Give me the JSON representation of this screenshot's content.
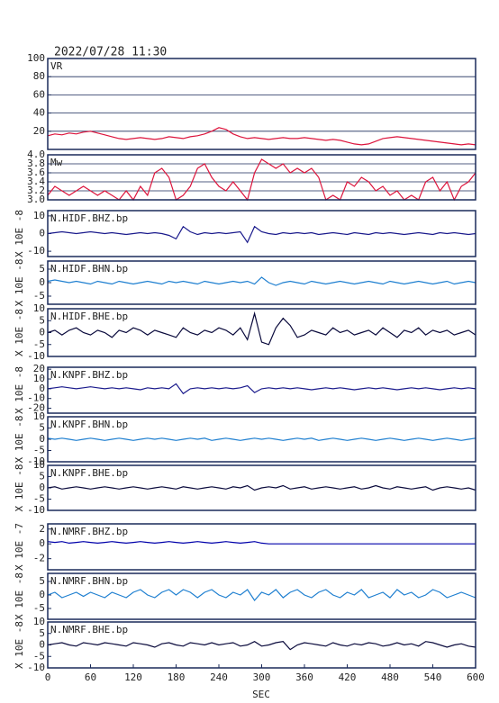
{
  "chart_data": {
    "type": "line",
    "title": "2022/07/28 11:30",
    "xlabel": "SEC",
    "xlim": [
      0,
      600
    ],
    "xticks": [
      0,
      60,
      120,
      180,
      240,
      300,
      360,
      420,
      480,
      540,
      600
    ],
    "x": [
      0,
      10,
      20,
      30,
      40,
      50,
      60,
      70,
      80,
      90,
      100,
      110,
      120,
      130,
      140,
      150,
      160,
      170,
      180,
      190,
      200,
      210,
      220,
      230,
      240,
      250,
      260,
      270,
      280,
      290,
      300,
      310,
      320,
      330,
      340,
      350,
      360,
      370,
      380,
      390,
      400,
      410,
      420,
      430,
      440,
      450,
      460,
      470,
      480,
      490,
      500,
      510,
      520,
      530,
      540,
      550,
      560,
      570,
      580,
      590,
      600
    ],
    "series": [
      {
        "name": "VR",
        "color": "#dc143c",
        "ylim": [
          0,
          100
        ],
        "yticks": [
          20,
          40,
          60,
          80,
          100
        ],
        "grid": true,
        "values": [
          15,
          17,
          16,
          18,
          17,
          19,
          20,
          18,
          16,
          14,
          12,
          11,
          12,
          13,
          12,
          11,
          12,
          14,
          13,
          12,
          14,
          15,
          17,
          20,
          24,
          22,
          17,
          14,
          12,
          13,
          12,
          11,
          12,
          13,
          12,
          12,
          13,
          12,
          11,
          10,
          11,
          10,
          8,
          6,
          5,
          6,
          9,
          12,
          13,
          14,
          13,
          12,
          11,
          10,
          9,
          8,
          7,
          6,
          5,
          6,
          5
        ]
      },
      {
        "name": "Mw",
        "color": "#dc143c",
        "ylim": [
          3,
          4
        ],
        "yticks": [
          {
            "value": 3,
            "label": "3.0"
          },
          3.2,
          3.4,
          3.6,
          3.8,
          {
            "value": 4,
            "label": "4.0"
          }
        ],
        "grid": true,
        "values": [
          3.1,
          3.3,
          3.2,
          3.1,
          3.2,
          3.3,
          3.2,
          3.1,
          3.2,
          3.1,
          3.0,
          3.2,
          3.0,
          3.3,
          3.1,
          3.6,
          3.7,
          3.5,
          3.0,
          3.1,
          3.3,
          3.7,
          3.8,
          3.5,
          3.3,
          3.2,
          3.4,
          3.2,
          3.0,
          3.6,
          3.9,
          3.8,
          3.7,
          3.8,
          3.6,
          3.7,
          3.6,
          3.7,
          3.5,
          3.0,
          3.1,
          3.0,
          3.4,
          3.3,
          3.5,
          3.4,
          3.2,
          3.3,
          3.1,
          3.2,
          3.0,
          3.1,
          3.0,
          3.4,
          3.5,
          3.2,
          3.4,
          3.0,
          3.3,
          3.4,
          3.6
        ]
      },
      {
        "name": "N.HIDF.BHZ.bp",
        "ylabel": "X 10E -8",
        "color": "#1a1a8c",
        "ylim": [
          -13,
          13
        ],
        "yticks": [
          -10,
          0,
          10
        ],
        "grid": false,
        "values": [
          0,
          0.5,
          1,
          0.5,
          0,
          0.5,
          1,
          0.5,
          0,
          0.5,
          0,
          -0.5,
          0,
          0.5,
          0,
          0.5,
          0,
          -1,
          -3,
          4,
          1,
          -0.5,
          0.5,
          0,
          0.5,
          0,
          0.5,
          1,
          -5,
          4,
          1,
          0,
          -0.5,
          0.5,
          0,
          0.5,
          0,
          0.5,
          -0.5,
          0,
          0.5,
          0,
          -0.5,
          0.5,
          0,
          -0.5,
          0.5,
          0,
          0.5,
          0,
          -0.5,
          0,
          0.5,
          0,
          -0.5,
          0.5,
          0,
          0.5,
          0,
          -0.5,
          0
        ]
      },
      {
        "name": "N.HIDF.BHN.bp",
        "ylabel": "X 10E -8",
        "color": "#1e7fd0",
        "ylim": [
          -8,
          8
        ],
        "yticks": [
          -5,
          0,
          5
        ],
        "grid": false,
        "values": [
          0.5,
          1,
          0.5,
          0,
          0.5,
          0,
          -0.5,
          0.5,
          0,
          -0.5,
          0.5,
          0,
          -0.5,
          0,
          0.5,
          0,
          -0.5,
          0.5,
          0,
          0.5,
          0,
          -0.5,
          0.5,
          0,
          -0.5,
          0,
          0.5,
          0,
          0.5,
          -0.5,
          2,
          0,
          -1,
          0,
          0.5,
          0,
          -0.5,
          0.5,
          0,
          -0.5,
          0,
          0.5,
          0,
          -0.5,
          0,
          0.5,
          0,
          -0.5,
          0.5,
          0,
          -0.5,
          0,
          0.5,
          0,
          -0.5,
          0,
          0.5,
          -0.5,
          0,
          0.5,
          0
        ]
      },
      {
        "name": "N.HIDF.BHE.bp",
        "ylabel": "X 10E -8",
        "color": "#0a0a3c",
        "ylim": [
          -10,
          10
        ],
        "yticks": [
          -10,
          -5,
          0,
          5,
          10
        ],
        "grid": false,
        "values": [
          0,
          1,
          -1,
          1,
          2,
          0,
          -1,
          1,
          0,
          -2,
          1,
          0,
          2,
          1,
          -1,
          1,
          0,
          -1,
          -2,
          2,
          0,
          -1,
          1,
          0,
          2,
          1,
          -1,
          2,
          -3,
          8,
          -4,
          -5,
          2,
          6,
          3,
          -2,
          -1,
          1,
          0,
          -1,
          2,
          0,
          1,
          -1,
          0,
          1,
          -1,
          2,
          0,
          -2,
          1,
          0,
          2,
          -1,
          1,
          0,
          1,
          -1,
          0,
          1,
          -1
        ]
      },
      {
        "name": "N.KNPF.BHZ.bp",
        "ylabel": "X 10E -8",
        "color": "#1a1a8c",
        "ylim": [
          -25,
          22
        ],
        "yticks": [
          -20,
          -10,
          0,
          10,
          20
        ],
        "grid": false,
        "values": [
          0,
          1,
          2,
          1,
          0,
          1,
          2,
          1,
          0,
          1,
          0,
          1,
          0,
          -1,
          1,
          0,
          1,
          0,
          5,
          -5,
          0,
          1,
          0,
          1,
          0,
          1,
          0,
          1,
          3,
          -4,
          0,
          1,
          0,
          1,
          0,
          1,
          0,
          -1,
          0,
          1,
          0,
          1,
          0,
          -1,
          0,
          1,
          0,
          1,
          0,
          -1,
          0,
          1,
          0,
          1,
          0,
          -1,
          0,
          1,
          0,
          1,
          0
        ]
      },
      {
        "name": "N.KNPF.BHN.bp",
        "ylabel": "X 10E -8",
        "color": "#1e7fd0",
        "ylim": [
          -10,
          10
        ],
        "yticks": [
          -10,
          -5,
          0,
          5,
          10
        ],
        "grid": false,
        "values": [
          0.5,
          0,
          0.5,
          0,
          -0.5,
          0,
          0.5,
          0,
          -0.5,
          0,
          0.5,
          0,
          -0.5,
          0,
          0.5,
          0,
          0.5,
          0,
          -0.5,
          0,
          0.5,
          0,
          0.5,
          -0.5,
          0,
          0.5,
          0,
          -0.5,
          0,
          0.5,
          0,
          0.5,
          0,
          -0.5,
          0,
          0.5,
          0,
          0.5,
          -0.5,
          0,
          0.5,
          0,
          -0.5,
          0,
          0.5,
          0,
          -0.5,
          0,
          0.5,
          0,
          -0.5,
          0,
          0.5,
          0,
          -0.5,
          0,
          0.5,
          0,
          -0.5,
          0,
          0.5
        ]
      },
      {
        "name": "N.KNPF.BHE.bp",
        "ylabel": "X 10E -8",
        "color": "#0a0a3c",
        "ylim": [
          -10,
          10
        ],
        "yticks": [
          -10,
          -5,
          0,
          5,
          10
        ],
        "grid": false,
        "values": [
          0,
          0.5,
          -0.5,
          0,
          0.5,
          0,
          -0.5,
          0,
          0.5,
          0,
          -0.5,
          0,
          0.5,
          0,
          -0.5,
          0,
          0.5,
          0,
          -0.5,
          0.5,
          0,
          -0.5,
          0,
          0.5,
          0,
          -0.5,
          0.5,
          0,
          1,
          -1,
          0,
          0.5,
          0,
          1,
          -0.5,
          0,
          0.5,
          -0.5,
          0,
          0.5,
          0,
          -0.5,
          0,
          0.5,
          -0.5,
          0,
          1,
          0,
          -0.5,
          0.5,
          0,
          -0.5,
          0,
          0.5,
          -1,
          0,
          0.5,
          0,
          -0.5,
          0,
          -1
        ]
      },
      {
        "name": "N.NMRF.BHZ.bp",
        "ylabel": "X 10E -7",
        "color": "#0000aa",
        "ylim": [
          -3.5,
          2.7
        ],
        "yticks": [
          -2,
          0,
          2
        ],
        "grid": false,
        "values": [
          0.3,
          0.2,
          0.3,
          0.1,
          0.2,
          0.3,
          0.2,
          0.1,
          0.2,
          0.3,
          0.2,
          0.1,
          0.2,
          0.3,
          0.2,
          0.1,
          0.2,
          0.3,
          0.2,
          0.1,
          0.2,
          0.3,
          0.2,
          0.1,
          0.2,
          0.3,
          0.2,
          0.1,
          0.2,
          0.3,
          0.1,
          0,
          0,
          0,
          0,
          0,
          0,
          0,
          0,
          0,
          0,
          0,
          0,
          0,
          0,
          0,
          0,
          0,
          0,
          0,
          0,
          0,
          0,
          0,
          0,
          0,
          0,
          0,
          0,
          0,
          0
        ]
      },
      {
        "name": "N.NMRF.BHN.bp",
        "ylabel": "X 10E -8",
        "color": "#1e7fd0",
        "ylim": [
          -9,
          8
        ],
        "yticks": [
          -5,
          0,
          5
        ],
        "grid": false,
        "values": [
          0,
          1,
          -1,
          0,
          1,
          -0.5,
          1,
          0,
          -1,
          1,
          0,
          -1,
          1,
          2,
          0,
          -1,
          1,
          2,
          0,
          2,
          1,
          -1,
          1,
          2,
          0,
          -1,
          1,
          0,
          2,
          -2,
          1,
          0,
          2,
          -1,
          1,
          2,
          0,
          -1,
          1,
          2,
          0,
          -1,
          1,
          0,
          2,
          -1,
          0,
          1,
          -1,
          2,
          0,
          1,
          -1,
          0,
          2,
          1,
          -1,
          0,
          1,
          0,
          -1
        ]
      },
      {
        "name": "N.NMRF.BHE.bp",
        "ylabel": "X 10E -8",
        "color": "#0a0a3c",
        "ylim": [
          -10,
          10
        ],
        "yticks": [
          -10,
          -5,
          0,
          5,
          10
        ],
        "grid": false,
        "values": [
          0,
          0.5,
          1,
          0,
          -0.5,
          1,
          0.5,
          0,
          1,
          0.5,
          0,
          -0.5,
          1,
          0.5,
          0,
          -1,
          0.5,
          1,
          0,
          -0.5,
          1,
          0.5,
          0,
          1,
          0,
          0.5,
          1,
          -0.5,
          0,
          1.5,
          -0.5,
          0,
          1,
          1.5,
          -2,
          0,
          1,
          0.5,
          0,
          -0.5,
          1,
          0,
          -0.5,
          0.5,
          0,
          1,
          0.5,
          -0.5,
          0,
          1,
          0,
          0.5,
          -0.5,
          1.5,
          1,
          0,
          -1,
          0,
          0.5,
          -0.5,
          -1
        ]
      }
    ]
  }
}
